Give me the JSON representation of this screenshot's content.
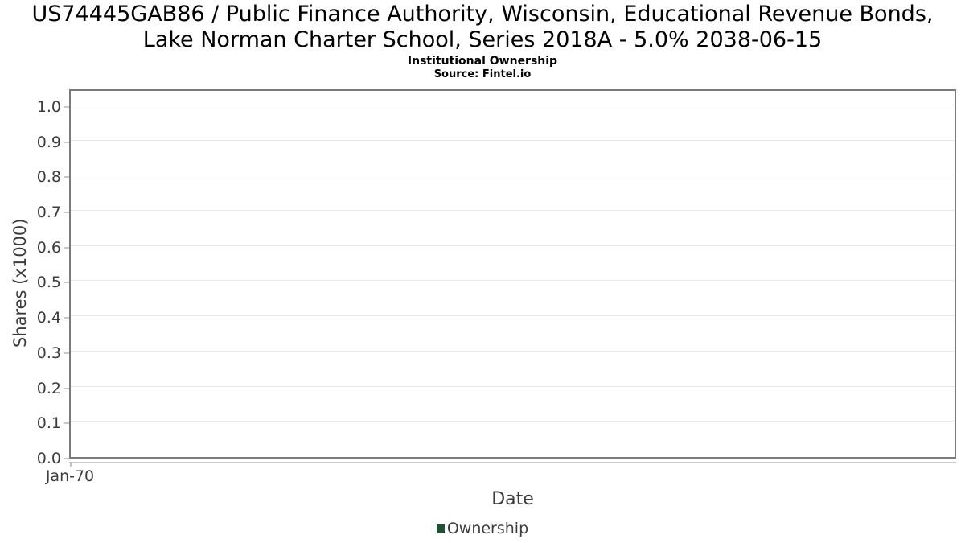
{
  "title": {
    "lines": [
      "US74445GAB86 / Public Finance Authority, Wisconsin, Educational Revenue Bonds,",
      "Lake Norman Charter School, Series 2018A - 5.0% 2038-06-15"
    ]
  },
  "subtitle": "Institutional Ownership",
  "source": "Source: Fintel.io",
  "chart_data": {
    "type": "line",
    "title": "US74445GAB86 / Public Finance Authority, Wisconsin, Educational Revenue Bonds, Lake Norman Charter School, Series 2018A - 5.0% 2038-06-15",
    "subtitle": "Institutional Ownership",
    "source": "Source: Fintel.io",
    "xlabel": "Date",
    "ylabel": "Shares (x1000)",
    "x_ticks": [
      "Jan-70"
    ],
    "y_ticks": [
      "0.0",
      "0.1",
      "0.2",
      "0.3",
      "0.4",
      "0.5",
      "0.6",
      "0.7",
      "0.8",
      "0.9",
      "1.0"
    ],
    "ylim": [
      0,
      1.05
    ],
    "grid": "horizontal-only",
    "legend_position": "bottom-center",
    "series": [
      {
        "name": "Ownership",
        "color": "#1e5230",
        "x": [],
        "values": []
      }
    ]
  },
  "colors": {
    "axis_text": "#3c3c3c",
    "plot_border": "#7a7a7a",
    "gridline": "#e8e8e8",
    "tick": "#c8c8c8",
    "legend_marker": "#1e5230",
    "title_text": "#000000"
  }
}
